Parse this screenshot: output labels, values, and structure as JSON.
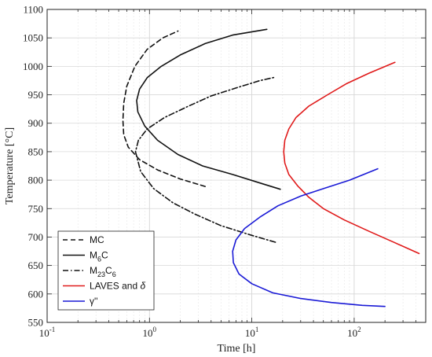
{
  "chart_data": {
    "type": "line",
    "title": "",
    "xlabel": "Time [h]",
    "ylabel": "Temperature [°C]",
    "xscale": "log",
    "xlim": [
      0.1,
      500
    ],
    "ylim": [
      550,
      1100
    ],
    "xticks": [
      {
        "value": 0.1,
        "base": "10",
        "exp": "-1"
      },
      {
        "value": 1,
        "base": "10",
        "exp": "0"
      },
      {
        "value": 10,
        "base": "10",
        "exp": "1"
      },
      {
        "value": 100,
        "base": "10",
        "exp": "2"
      }
    ],
    "yticks": [
      "550",
      "600",
      "650",
      "700",
      "750",
      "800",
      "850",
      "900",
      "950",
      "1000",
      "1050",
      "1100"
    ],
    "grid": true,
    "legend": {
      "position": "bottom-left"
    },
    "series": [
      {
        "name": "MC",
        "name_main": "MC",
        "name_sub": "",
        "name_tail": "",
        "color": "#111111",
        "dash": "dashed",
        "points": [
          [
            3.5,
            789
          ],
          [
            2.0,
            802
          ],
          [
            1.2,
            818
          ],
          [
            0.8,
            836
          ],
          [
            0.62,
            858
          ],
          [
            0.56,
            880
          ],
          [
            0.55,
            905
          ],
          [
            0.56,
            935
          ],
          [
            0.6,
            965
          ],
          [
            0.72,
            1000
          ],
          [
            0.95,
            1030
          ],
          [
            1.35,
            1050
          ],
          [
            1.9,
            1062
          ]
        ]
      },
      {
        "name": "M6C",
        "name_main": "M",
        "name_sub": "6",
        "name_tail": "C",
        "color": "#111111",
        "dash": "solid",
        "points": [
          [
            19,
            784
          ],
          [
            12,
            795
          ],
          [
            6.5,
            810
          ],
          [
            3.3,
            825
          ],
          [
            1.9,
            845
          ],
          [
            1.2,
            870
          ],
          [
            0.9,
            895
          ],
          [
            0.77,
            920
          ],
          [
            0.75,
            940
          ],
          [
            0.8,
            960
          ],
          [
            0.95,
            980
          ],
          [
            1.3,
            1000
          ],
          [
            2.0,
            1020
          ],
          [
            3.5,
            1040
          ],
          [
            6.5,
            1055
          ],
          [
            14,
            1065
          ]
        ]
      },
      {
        "name": "M23C6",
        "name_main": "M",
        "name_sub": "23",
        "name_tail": "C6",
        "color": "#111111",
        "dash": "dashdot",
        "points": [
          [
            17,
            691
          ],
          [
            10,
            703
          ],
          [
            5,
            720
          ],
          [
            2.8,
            740
          ],
          [
            1.7,
            760
          ],
          [
            1.1,
            785
          ],
          [
            0.82,
            815
          ],
          [
            0.73,
            850
          ],
          [
            0.78,
            870
          ],
          [
            0.95,
            890
          ],
          [
            1.4,
            910
          ],
          [
            2.4,
            930
          ],
          [
            4,
            948
          ],
          [
            7,
            962
          ],
          [
            12,
            975
          ],
          [
            17,
            981
          ]
        ]
      },
      {
        "name": "LAVES and δ",
        "name_main": "LAVES and ",
        "name_sub": "",
        "name_tail": "δ",
        "color": "#e01a1a",
        "dash": "solid",
        "points": [
          [
            430,
            671
          ],
          [
            250,
            690
          ],
          [
            140,
            710
          ],
          [
            80,
            730
          ],
          [
            50,
            750
          ],
          [
            36,
            770
          ],
          [
            28,
            790
          ],
          [
            23,
            810
          ],
          [
            21,
            830
          ],
          [
            20.5,
            850
          ],
          [
            21,
            870
          ],
          [
            23,
            890
          ],
          [
            27,
            910
          ],
          [
            36,
            930
          ],
          [
            55,
            950
          ],
          [
            85,
            970
          ],
          [
            140,
            988
          ],
          [
            250,
            1007
          ]
        ]
      },
      {
        "name": "γ''",
        "name_main": "γ''",
        "name_sub": "",
        "name_tail": "",
        "color": "#1a1ad6",
        "dash": "solid",
        "points": [
          [
            200,
            578
          ],
          [
            120,
            580
          ],
          [
            60,
            585
          ],
          [
            30,
            592
          ],
          [
            16,
            602
          ],
          [
            10,
            618
          ],
          [
            7.5,
            635
          ],
          [
            6.6,
            655
          ],
          [
            6.5,
            675
          ],
          [
            7,
            695
          ],
          [
            8.5,
            715
          ],
          [
            12,
            735
          ],
          [
            18,
            755
          ],
          [
            30,
            772
          ],
          [
            50,
            785
          ],
          [
            90,
            800
          ],
          [
            170,
            820
          ]
        ]
      }
    ]
  }
}
